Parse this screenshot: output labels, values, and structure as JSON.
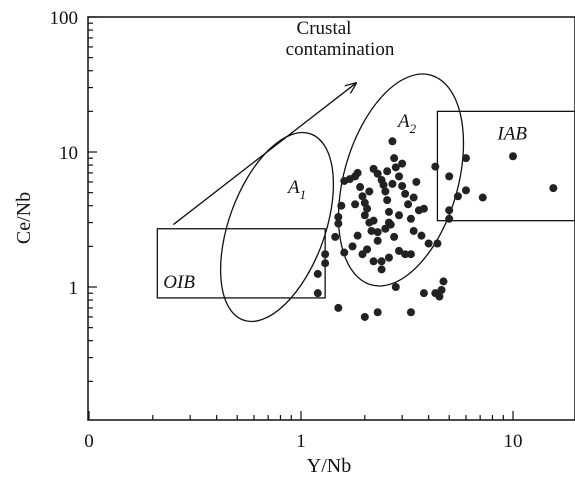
{
  "chart_data": {
    "type": "scatter",
    "xlabel": "Y/Nb",
    "ylabel": "Ce/Nb",
    "x_scale": "log",
    "y_scale": "log",
    "xlim": [
      0.1,
      20
    ],
    "ylim": [
      0.1,
      100
    ],
    "x_ticks": [
      {
        "value": 0.1,
        "label": "0"
      },
      {
        "value": 1,
        "label": "1"
      },
      {
        "value": 10,
        "label": "10"
      }
    ],
    "y_ticks": [
      {
        "value": 1,
        "label": "1"
      },
      {
        "value": 10,
        "label": "10"
      },
      {
        "value": 100,
        "label": "100"
      }
    ],
    "grid": false,
    "points": [
      [
        1.5,
        0.7
      ],
      [
        1.6,
        1.8
      ],
      [
        2.0,
        0.6
      ],
      [
        2.3,
        0.65
      ],
      [
        3.3,
        0.65
      ],
      [
        2.8,
        1.0
      ],
      [
        3.8,
        0.9
      ],
      [
        4.3,
        0.9
      ],
      [
        4.7,
        1.1
      ],
      [
        4.6,
        0.95
      ],
      [
        4.5,
        0.85
      ],
      [
        1.2,
        0.9
      ],
      [
        1.2,
        1.25
      ],
      [
        1.3,
        1.5
      ],
      [
        1.3,
        1.75
      ],
      [
        1.45,
        2.35
      ],
      [
        1.5,
        2.95
      ],
      [
        1.5,
        3.3
      ],
      [
        1.55,
        4.0
      ],
      [
        1.6,
        6.1
      ],
      [
        1.7,
        6.3
      ],
      [
        1.8,
        6.6
      ],
      [
        1.85,
        7.0
      ],
      [
        1.9,
        5.5
      ],
      [
        1.95,
        4.7
      ],
      [
        2.0,
        4.2
      ],
      [
        2.05,
        3.8
      ],
      [
        2.1,
        3.0
      ],
      [
        2.15,
        2.6
      ],
      [
        2.2,
        7.5
      ],
      [
        2.3,
        6.9
      ],
      [
        2.4,
        6.2
      ],
      [
        2.45,
        5.7
      ],
      [
        2.5,
        5.1
      ],
      [
        2.55,
        4.4
      ],
      [
        2.6,
        3.6
      ],
      [
        2.65,
        2.9
      ],
      [
        2.7,
        12.0
      ],
      [
        2.75,
        9.0
      ],
      [
        2.8,
        7.7
      ],
      [
        2.9,
        6.6
      ],
      [
        3.0,
        5.6
      ],
      [
        3.1,
        4.9
      ],
      [
        3.2,
        4.1
      ],
      [
        3.3,
        3.2
      ],
      [
        3.4,
        2.6
      ],
      [
        3.5,
        6.0
      ],
      [
        3.6,
        3.7
      ],
      [
        3.7,
        2.4
      ],
      [
        3.8,
        3.8
      ],
      [
        4.0,
        2.1
      ],
      [
        1.75,
        2.0
      ],
      [
        1.85,
        2.4
      ],
      [
        1.95,
        1.75
      ],
      [
        2.05,
        1.9
      ],
      [
        2.2,
        1.55
      ],
      [
        2.3,
        2.2
      ],
      [
        2.4,
        1.35
      ],
      [
        2.5,
        2.7
      ],
      [
        2.6,
        1.65
      ],
      [
        2.75,
        2.35
      ],
      [
        2.9,
        1.85
      ],
      [
        3.1,
        1.75
      ],
      [
        3.3,
        1.75
      ],
      [
        2.0,
        3.4
      ],
      [
        2.2,
        3.1
      ],
      [
        2.3,
        2.55
      ],
      [
        2.4,
        1.55
      ],
      [
        3.4,
        4.6
      ],
      [
        3.0,
        8.2
      ],
      [
        2.55,
        7.2
      ],
      [
        2.1,
        5.1
      ],
      [
        1.8,
        4.1
      ],
      [
        2.6,
        3.0
      ],
      [
        2.7,
        5.8
      ],
      [
        2.9,
        3.4
      ],
      [
        4.3,
        7.8
      ],
      [
        4.4,
        2.1
      ],
      [
        5.0,
        3.2
      ],
      [
        5.0,
        3.7
      ],
      [
        5.0,
        6.6
      ],
      [
        5.5,
        4.7
      ],
      [
        6.0,
        9.0
      ],
      [
        6.0,
        5.2
      ],
      [
        7.2,
        4.6
      ],
      [
        10.0,
        9.3
      ],
      [
        15.5,
        5.4
      ]
    ],
    "fields": [
      {
        "name": "OIB",
        "shape": "rectangle",
        "x": [
          0.21,
          1.3
        ],
        "y": [
          0.83,
          2.7
        ]
      },
      {
        "name": "IAB",
        "shape": "rectangle",
        "x": [
          4.4,
          20
        ],
        "y": [
          3.1,
          20
        ]
      }
    ],
    "ellipse_labels": [
      {
        "text": "A",
        "subscript": "1"
      },
      {
        "text": "A",
        "subscript": "2"
      }
    ],
    "arrow": {
      "label_lines": [
        "Crustal",
        "contamination"
      ],
      "from": [
        0.25,
        2.9
      ],
      "to": [
        1.8,
        32
      ]
    }
  }
}
